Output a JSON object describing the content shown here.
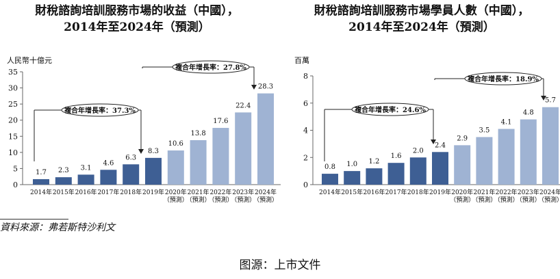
{
  "chart_data": [
    {
      "type": "bar",
      "title": "財稅諮詢培訓服務市場的收益（中國），",
      "subtitle": "2014年至2024年（預測）",
      "ylabel": "人民幣十億元",
      "ylim": [
        0,
        35
      ],
      "yticks": [
        0,
        5,
        10,
        15,
        20,
        25,
        30,
        35
      ],
      "categories": [
        "2014年",
        "2015年",
        "2016年",
        "2017年",
        "2018年",
        "2019年",
        "2020年",
        "2021年",
        "2022年",
        "2023年",
        "2024年"
      ],
      "forecast_label": "（預測）",
      "values": [
        1.7,
        2.3,
        3.1,
        4.6,
        6.3,
        8.3,
        10.6,
        13.8,
        17.6,
        22.4,
        28.3
      ],
      "value_labels": [
        "1.7",
        "2.3",
        "3.1",
        "4.6",
        "6.3",
        "8.3",
        "10.6",
        "13.8",
        "17.6",
        "22.4",
        "28.3"
      ],
      "forecast_start_index": 6,
      "cagr_labels": [
        "複合年增長率：37.3%",
        "複合年增長率：27.8%"
      ],
      "colors": {
        "actual": "#3e5f94",
        "forecast": "#9fb3d3"
      },
      "grid": false,
      "legend": "none"
    },
    {
      "type": "bar",
      "title": "財稅諮詢培訓服務市場學員人數（中國），",
      "subtitle": "2014年至2024年（預測）",
      "ylabel": "百萬",
      "ylim": [
        0,
        8
      ],
      "yticks": [
        0,
        2,
        4,
        6,
        8
      ],
      "categories": [
        "2014年",
        "2015年",
        "2016年",
        "2017年",
        "2018年",
        "2019年",
        "2020年",
        "2021年",
        "2022年",
        "2023年",
        "2024年"
      ],
      "forecast_label": "（預測）",
      "values": [
        0.8,
        1.0,
        1.2,
        1.6,
        2.0,
        2.4,
        2.9,
        3.5,
        4.1,
        4.8,
        5.7
      ],
      "value_labels": [
        "0.8",
        "1.0",
        "1.2",
        "1.6",
        "2.0",
        "2.4",
        "2.9",
        "3.5",
        "4.1",
        "4.8",
        "5.7"
      ],
      "forecast_start_index": 6,
      "cagr_labels": [
        "複合年增長率：24.6%",
        "複合年增長率：18.9%"
      ],
      "colors": {
        "actual": "#3e5f94",
        "forecast": "#9fb3d3"
      },
      "grid": false,
      "legend": "none"
    }
  ],
  "source_note": "資料來源：弗若斯特沙利文",
  "caption": "图源：上市文件"
}
